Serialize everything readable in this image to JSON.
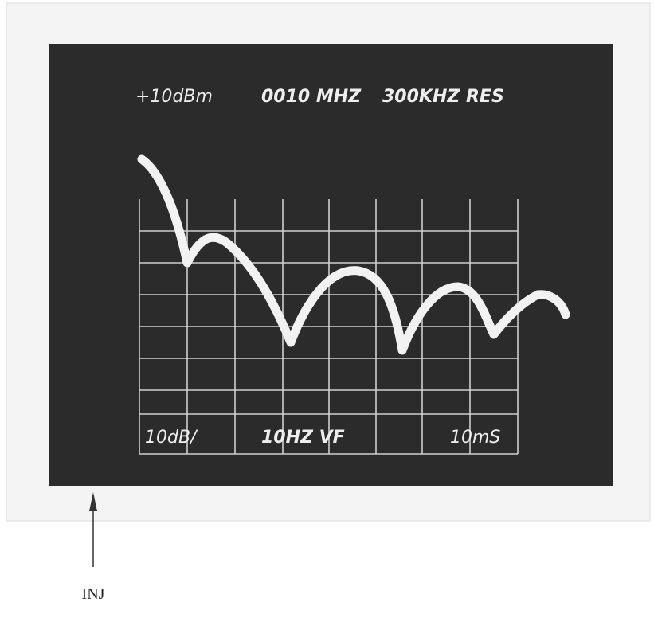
{
  "screen": {
    "top_labels": [
      "+10dBm",
      "0010 MHZ",
      "300KHZ RES"
    ],
    "bottom_labels": [
      "10dB/",
      "10HZ VF",
      "10mS"
    ]
  },
  "annotation": {
    "label": "INJ"
  }
}
